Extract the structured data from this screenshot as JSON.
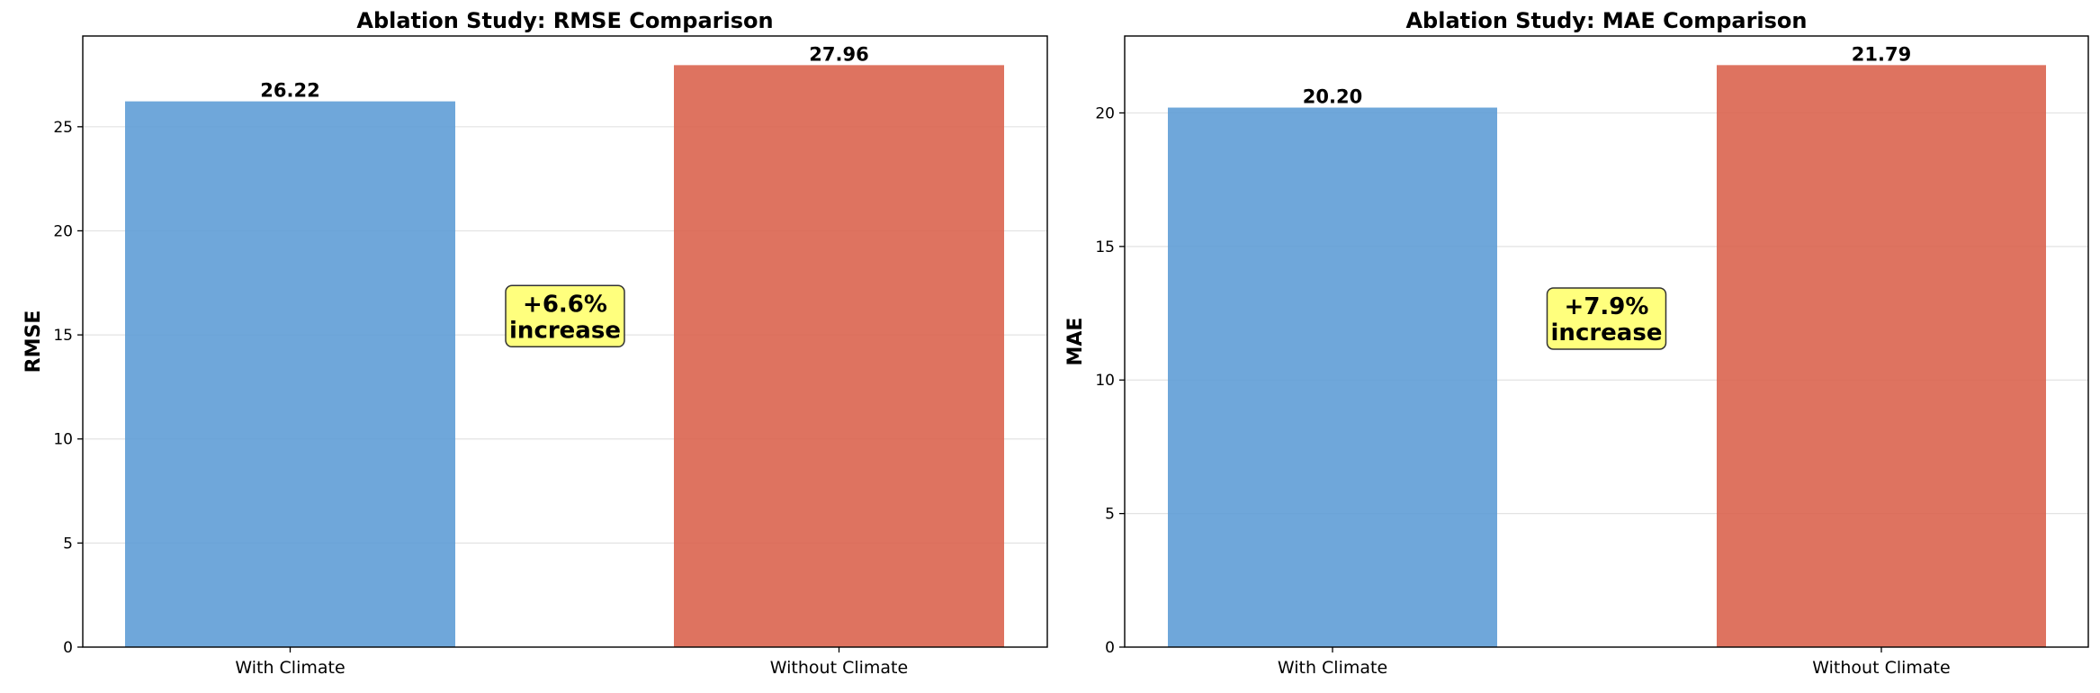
{
  "chart_data": [
    {
      "type": "bar",
      "title": "Ablation Study: RMSE Comparison",
      "xlabel": "",
      "ylabel": "RMSE",
      "categories": [
        "With Climate",
        "Without Climate"
      ],
      "values": [
        26.22,
        27.96
      ],
      "value_labels": [
        "26.22",
        "27.96"
      ],
      "bar_colors": [
        "#5b9bd5",
        "#d9604a"
      ],
      "ylim": [
        0,
        29.36
      ],
      "yticks": [
        0,
        5,
        10,
        15,
        20,
        25
      ],
      "grid": "y",
      "annotation": {
        "lines": [
          "+6.6%",
          "increase"
        ],
        "background": "#ffff66",
        "y_value": 15.9
      }
    },
    {
      "type": "bar",
      "title": "Ablation Study: MAE Comparison",
      "xlabel": "",
      "ylabel": "MAE",
      "categories": [
        "With Climate",
        "Without Climate"
      ],
      "values": [
        20.2,
        21.79
      ],
      "value_labels": [
        "20.20",
        "21.79"
      ],
      "bar_colors": [
        "#5b9bd5",
        "#d9604a"
      ],
      "ylim": [
        0,
        22.88
      ],
      "yticks": [
        0,
        5,
        10,
        15,
        20
      ],
      "grid": "y",
      "annotation": {
        "lines": [
          "+7.9%",
          "increase"
        ],
        "background": "#ffff66",
        "y_value": 12.3
      }
    }
  ]
}
